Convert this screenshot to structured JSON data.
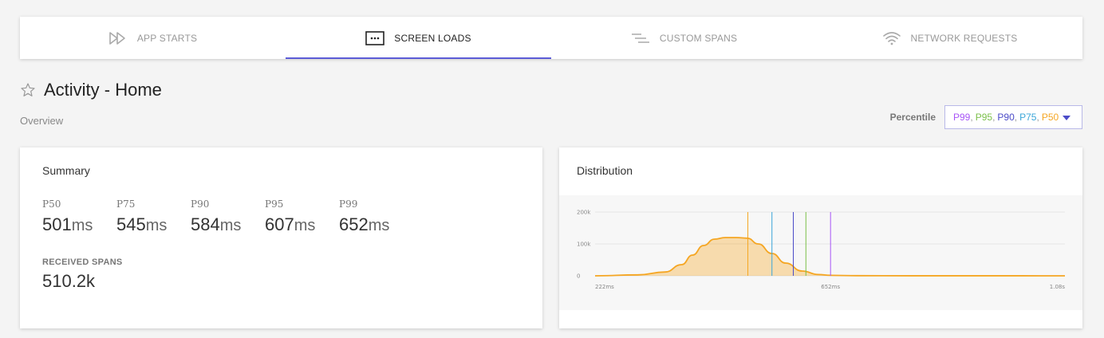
{
  "tabs": [
    {
      "label": "APP STARTS",
      "icon": "double-play-icon",
      "active": false
    },
    {
      "label": "SCREEN LOADS",
      "icon": "screen-dots-icon",
      "active": true
    },
    {
      "label": "CUSTOM SPANS",
      "icon": "spans-lines-icon",
      "active": false
    },
    {
      "label": "NETWORK REQUESTS",
      "icon": "wifi-icon",
      "active": false
    }
  ],
  "page": {
    "title": "Activity - Home",
    "subtitle": "Overview"
  },
  "percentile": {
    "label": "Percentile",
    "options": [
      {
        "text": "P99",
        "color": "#a855f7"
      },
      {
        "text": "P95",
        "color": "#7cc04b"
      },
      {
        "text": "P90",
        "color": "#4b4bc8"
      },
      {
        "text": "P75",
        "color": "#3aa6d9"
      },
      {
        "text": "P50",
        "color": "#f5a623"
      }
    ]
  },
  "summary": {
    "title": "Summary",
    "stats": [
      {
        "label": "P50",
        "value": "501",
        "unit": "ms"
      },
      {
        "label": "P75",
        "value": "545",
        "unit": "ms"
      },
      {
        "label": "P90",
        "value": "584",
        "unit": "ms"
      },
      {
        "label": "P95",
        "value": "607",
        "unit": "ms"
      },
      {
        "label": "P99",
        "value": "652",
        "unit": "ms"
      }
    ],
    "spans_label": "RECEIVED SPANS",
    "spans_value": "510.2k"
  },
  "distribution": {
    "title": "Distribution"
  },
  "chart_data": {
    "type": "area",
    "x_unit": "ms",
    "x": [
      222,
      300,
      350,
      380,
      400,
      420,
      440,
      460,
      480,
      500,
      520,
      545,
      570,
      600,
      630,
      652,
      700,
      800,
      1000,
      1080
    ],
    "y": [
      0,
      3000,
      12000,
      35000,
      65000,
      95000,
      115000,
      120000,
      120000,
      118000,
      100000,
      70000,
      40000,
      15000,
      4000,
      1500,
      500,
      200,
      100,
      50
    ],
    "xlim": [
      222,
      1080
    ],
    "ylim": [
      0,
      200000
    ],
    "x_ticks": [
      "222ms",
      "652ms",
      "1.08s"
    ],
    "x_tick_values": [
      222,
      652,
      1080
    ],
    "y_ticks": [
      "0",
      "100k",
      "200k"
    ],
    "y_tick_values": [
      0,
      100000,
      200000
    ],
    "grid": true,
    "area_color": "#f5a623",
    "percentile_lines": [
      {
        "name": "P50",
        "x": 501,
        "color": "#f5a623"
      },
      {
        "name": "P75",
        "x": 545,
        "color": "#3aa6d9"
      },
      {
        "name": "P90",
        "x": 584,
        "color": "#4b4bc8"
      },
      {
        "name": "P95",
        "x": 607,
        "color": "#7cc04b"
      },
      {
        "name": "P99",
        "x": 652,
        "color": "#a855f7"
      }
    ]
  }
}
